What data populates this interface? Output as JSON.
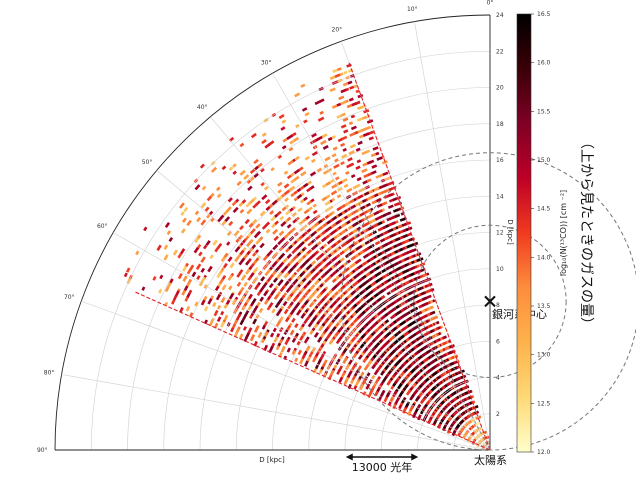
{
  "chart_data": {
    "type": "heatmap",
    "projection": "polar quadrant",
    "title": "",
    "radial_axis": {
      "label": "D [kpc]",
      "range": [
        0,
        24
      ],
      "ticks": [
        2,
        4,
        6,
        8,
        10,
        12,
        14,
        16,
        18,
        20,
        22,
        24
      ]
    },
    "angular_axis": {
      "ticks": [
        "0°",
        "10°",
        "20°",
        "30°",
        "40°",
        "50°",
        "60°",
        "70°",
        "80°",
        "90°"
      ],
      "range_deg": [
        0,
        90
      ]
    },
    "bottom_axis_label": "D [kpc]",
    "colorbar": {
      "label": "log₁₀(N(¹³CO)) [cm ⁻²]",
      "range": [
        12.0,
        16.5
      ],
      "ticks": [
        "12.0",
        "12.5",
        "13.0",
        "13.5",
        "14.0",
        "14.5",
        "15.0",
        "15.5",
        "16.0",
        "16.5"
      ],
      "colormap": [
        "#ffffcc",
        "#fed976",
        "#feb24c",
        "#fd8d3c",
        "#f03b20",
        "#bd0026",
        "#800026",
        "#3a0008",
        "#000000"
      ]
    },
    "survey_wedge_deg": [
      20,
      66
    ],
    "galactic_center": {
      "distance_kpc": 8.2,
      "label": "銀河系中心"
    },
    "sun": {
      "label": "太陽系"
    },
    "circles_center_kpc": [
      0,
      8.2
    ],
    "circle_radii_kpc": [
      4.2,
      8.2
    ],
    "scale_bar": {
      "label": "13000 光年",
      "length_kpc": 4.0
    },
    "side_label": "（上から見たときのガスの量）",
    "colors": {
      "circle": "#777777",
      "boundary": "#e0202a",
      "marker": "#111111"
    }
  }
}
